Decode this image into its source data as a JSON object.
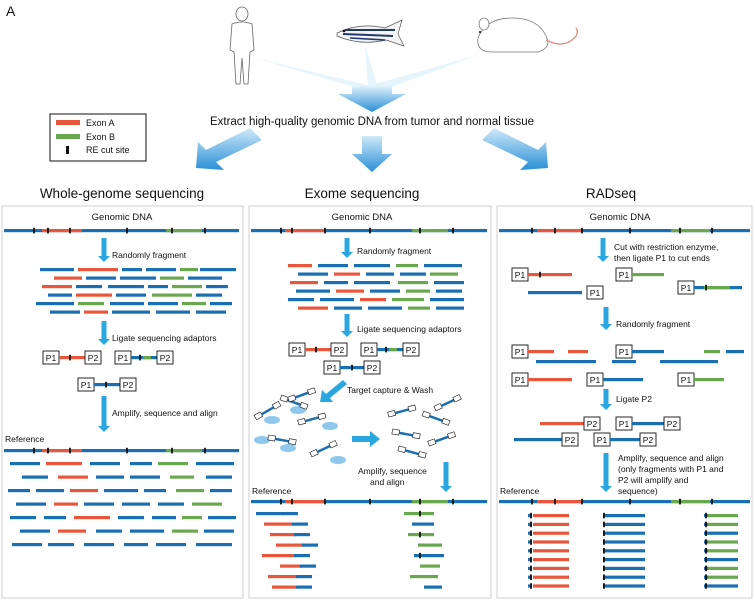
{
  "panel_label": "A",
  "extract_text": "Extract high-quality genomic DNA from tumor and normal tissue",
  "legend": {
    "items": [
      {
        "label": "Exon A",
        "color": "#e8573c"
      },
      {
        "label": "Exon B",
        "color": "#6aa84f"
      },
      {
        "label": "RE cut site",
        "color": "#111111"
      }
    ]
  },
  "colors": {
    "dna": "#1a6fb3",
    "exon_a": "#e8573c",
    "exon_b": "#6aa84f",
    "arrow": "#2aa7e0"
  },
  "icons": [
    "human-silhouette-icon",
    "zebrafish-icon",
    "mouse-icon"
  ],
  "columns": {
    "wgs": {
      "title": "Whole-genome sequencing",
      "genomic_label": "Genomic DNA",
      "step1": "Randomly fragment",
      "step2": "Ligate sequencing adaptors",
      "step3": "Amplify, sequence and align",
      "reference": "Reference"
    },
    "exome": {
      "title": "Exome sequencing",
      "genomic_label": "Genomic DNA",
      "step1": "Randomly fragment",
      "step2": "Ligate sequencing adaptors",
      "step3": "Target capture & Wash",
      "step4_line1": "Amplify, sequence",
      "step4_line2": "and align",
      "reference": "Reference"
    },
    "radseq": {
      "title": "RADseq",
      "genomic_label": "Genomic DNA",
      "step1_line1": "Cut with restriction enzyme,",
      "step1_line2": "then ligate P1 to cut ends",
      "step2": "Randomly fragment",
      "step3": "Ligate P2",
      "step4_line1": "Amplify, sequence and align",
      "step4_line2": "(only fragments with P1 and",
      "step4_line3": "P2 will amplify and",
      "step4_line4": "sequence)",
      "reference": "Reference"
    }
  },
  "adaptors": {
    "p1": "P1",
    "p2": "P2"
  }
}
